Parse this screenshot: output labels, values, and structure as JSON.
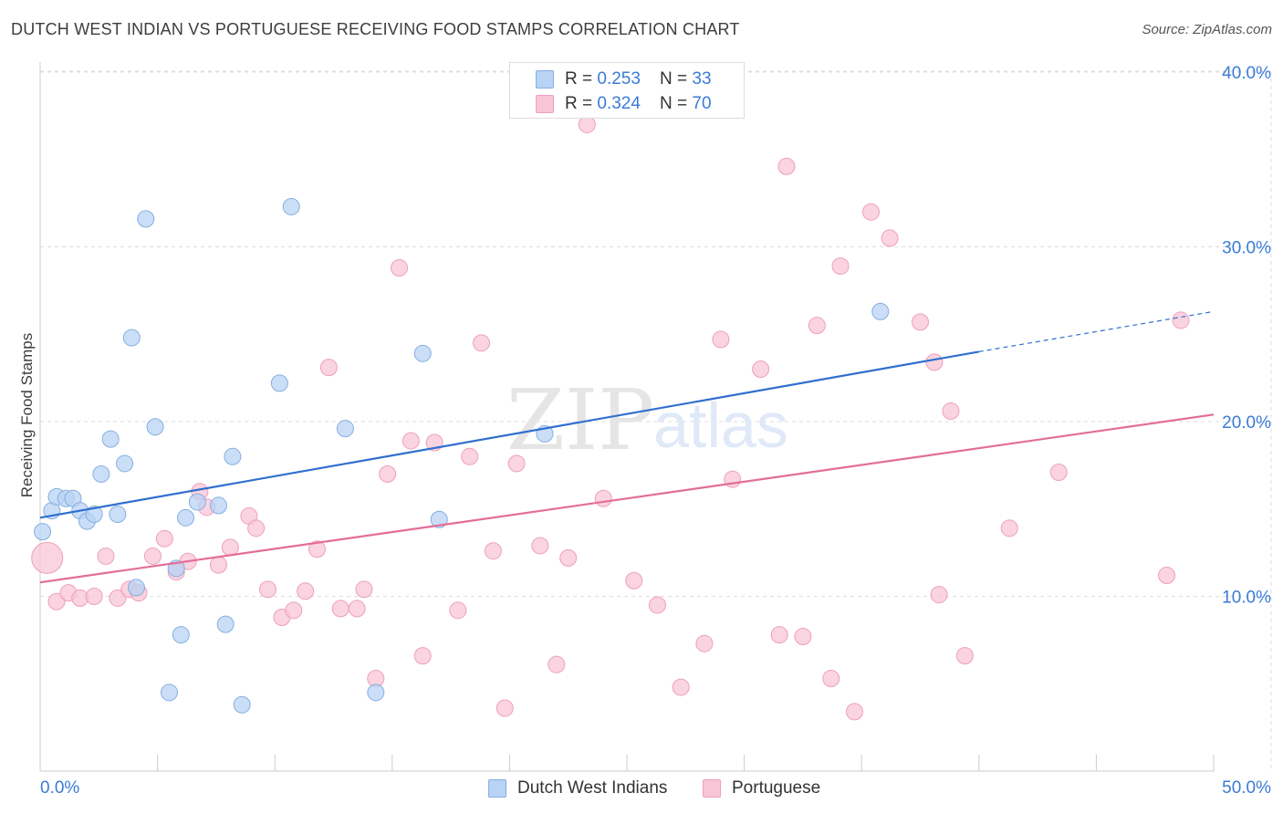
{
  "title": "DUTCH WEST INDIAN VS PORTUGUESE RECEIVING FOOD STAMPS CORRELATION CHART",
  "source": "Source: ZipAtlas.com",
  "watermark": {
    "zip": "ZIP",
    "atlas": "atlas"
  },
  "colors": {
    "blue_fill": "#b8d3f4",
    "blue_stroke": "#86afe0",
    "blue_line": "#2f6fcf",
    "pink_fill": "#f8c6d6",
    "pink_stroke": "#eea0ba",
    "pink_line": "#e46d97",
    "tick_label": "#3a7bd5",
    "grid": "#dddddd",
    "axis": "#cccccc"
  },
  "legend": {
    "rows": [
      {
        "series": "Dutch West Indians",
        "r_label": "R = ",
        "r_value": "0.253",
        "n_label": "N = ",
        "n_value": "33"
      },
      {
        "series": "Portuguese",
        "r_label": "R = ",
        "r_value": "0.324",
        "n_label": "N = ",
        "n_value": "70"
      }
    ]
  },
  "chart_data": {
    "type": "scatter",
    "title": "DUTCH WEST INDIAN VS PORTUGUESE RECEIVING FOOD STAMPS CORRELATION CHART",
    "xlabel": "",
    "ylabel": "Receiving Food Stamps",
    "xlim": [
      0,
      50
    ],
    "ylim": [
      0,
      40
    ],
    "x_tick_labels": [
      "0.0%",
      "50.0%"
    ],
    "y_ticks": [
      10,
      20,
      30,
      40
    ],
    "y_tick_labels": [
      "10.0%",
      "20.0%",
      "30.0%",
      "40.0%"
    ],
    "grid": true,
    "legend_position": "top-center",
    "series": [
      {
        "name": "Dutch West Indians",
        "color": "#b8d3f4",
        "trend": {
          "x0": 0,
          "y0": 14.5,
          "x1": 40,
          "y1": 24.0,
          "dash_to_x": 50,
          "dash_to_y": 26.3
        },
        "points": [
          [
            0.1,
            13.7
          ],
          [
            0.5,
            14.9
          ],
          [
            0.7,
            15.7
          ],
          [
            1.1,
            15.6
          ],
          [
            1.4,
            15.6
          ],
          [
            1.7,
            14.9
          ],
          [
            2.0,
            14.3
          ],
          [
            2.3,
            14.7
          ],
          [
            2.6,
            17.0
          ],
          [
            3.0,
            19.0
          ],
          [
            3.3,
            14.7
          ],
          [
            3.6,
            17.6
          ],
          [
            3.9,
            24.8
          ],
          [
            4.1,
            10.5
          ],
          [
            4.5,
            31.6
          ],
          [
            4.9,
            19.7
          ],
          [
            5.5,
            4.5
          ],
          [
            5.8,
            11.6
          ],
          [
            6.0,
            7.8
          ],
          [
            6.2,
            14.5
          ],
          [
            6.7,
            15.4
          ],
          [
            7.6,
            15.2
          ],
          [
            7.9,
            8.4
          ],
          [
            8.2,
            18.0
          ],
          [
            8.6,
            3.8
          ],
          [
            10.2,
            22.2
          ],
          [
            10.7,
            32.3
          ],
          [
            13.0,
            19.6
          ],
          [
            14.3,
            4.5
          ],
          [
            16.3,
            23.9
          ],
          [
            17.0,
            14.4
          ],
          [
            21.5,
            19.3
          ],
          [
            35.8,
            26.3
          ]
        ]
      },
      {
        "name": "Portuguese",
        "color": "#f8c6d6",
        "trend": {
          "x0": 0,
          "y0": 10.8,
          "x1": 50,
          "y1": 20.4
        },
        "points": [
          [
            0.3,
            12.2
          ],
          [
            0.7,
            9.7
          ],
          [
            1.2,
            10.2
          ],
          [
            1.7,
            9.9
          ],
          [
            2.3,
            10.0
          ],
          [
            2.8,
            12.3
          ],
          [
            3.3,
            9.9
          ],
          [
            3.8,
            10.4
          ],
          [
            4.2,
            10.2
          ],
          [
            4.8,
            12.3
          ],
          [
            5.3,
            13.3
          ],
          [
            5.8,
            11.4
          ],
          [
            6.3,
            12.0
          ],
          [
            6.8,
            16.0
          ],
          [
            7.1,
            15.1
          ],
          [
            7.6,
            11.8
          ],
          [
            8.1,
            12.8
          ],
          [
            8.9,
            14.6
          ],
          [
            9.2,
            13.9
          ],
          [
            9.7,
            10.4
          ],
          [
            10.3,
            8.8
          ],
          [
            10.8,
            9.2
          ],
          [
            11.3,
            10.3
          ],
          [
            11.8,
            12.7
          ],
          [
            12.3,
            23.1
          ],
          [
            12.8,
            9.3
          ],
          [
            13.5,
            9.3
          ],
          [
            13.8,
            10.4
          ],
          [
            14.3,
            5.3
          ],
          [
            14.8,
            17.0
          ],
          [
            15.3,
            28.8
          ],
          [
            15.8,
            18.9
          ],
          [
            16.3,
            6.6
          ],
          [
            16.8,
            18.8
          ],
          [
            17.8,
            9.2
          ],
          [
            18.3,
            18.0
          ],
          [
            18.8,
            24.5
          ],
          [
            19.3,
            12.6
          ],
          [
            19.8,
            3.6
          ],
          [
            20.3,
            17.6
          ],
          [
            21.3,
            12.9
          ],
          [
            22.0,
            6.1
          ],
          [
            22.5,
            12.2
          ],
          [
            23.3,
            37.0
          ],
          [
            24.0,
            15.6
          ],
          [
            25.3,
            10.9
          ],
          [
            26.3,
            9.5
          ],
          [
            27.3,
            4.8
          ],
          [
            28.3,
            7.3
          ],
          [
            29.0,
            24.7
          ],
          [
            29.5,
            16.7
          ],
          [
            30.7,
            23.0
          ],
          [
            31.5,
            7.8
          ],
          [
            31.8,
            34.6
          ],
          [
            32.5,
            7.7
          ],
          [
            33.1,
            25.5
          ],
          [
            33.7,
            5.3
          ],
          [
            34.1,
            28.9
          ],
          [
            34.7,
            3.4
          ],
          [
            35.4,
            32.0
          ],
          [
            36.2,
            30.5
          ],
          [
            37.5,
            25.7
          ],
          [
            38.1,
            23.4
          ],
          [
            38.3,
            10.1
          ],
          [
            38.8,
            20.6
          ],
          [
            39.4,
            6.6
          ],
          [
            41.3,
            13.9
          ],
          [
            43.4,
            17.1
          ],
          [
            48.0,
            11.2
          ],
          [
            48.6,
            25.8
          ]
        ]
      }
    ]
  }
}
